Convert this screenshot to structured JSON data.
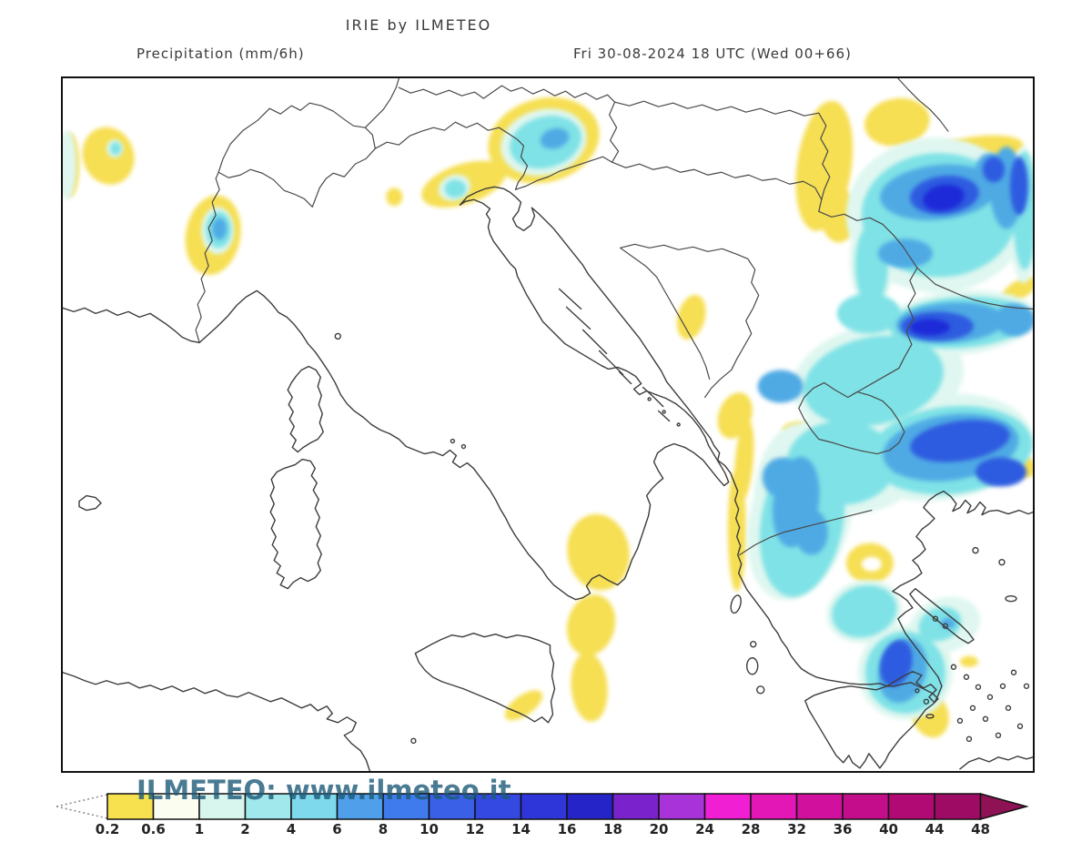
{
  "header": {
    "title": "IRIE by ILMETEO",
    "variable_label": "Precipitation (mm/6h)",
    "valid_time_label": "Fri 30-08-2024 18 UTC (Wed 00+66)"
  },
  "map": {
    "watermark": "ILMETEO: www.ilmeteo.it",
    "sea_color": "#ffffff",
    "coastline_color": "#3d3d3d",
    "border_line_color": "#4a4a4a",
    "frame_color": "#111111",
    "region": "Italy, Adriatic, Balkans and Greece"
  },
  "colorbar": {
    "unit": "mm/6h",
    "labels": [
      "0.2",
      "0.6",
      "1",
      "2",
      "4",
      "6",
      "8",
      "10",
      "12",
      "14",
      "16",
      "18",
      "20",
      "24",
      "28",
      "32",
      "36",
      "40",
      "44",
      "48"
    ],
    "segment_colors": [
      "#F8E14E",
      "#FBFDF0",
      "#D8F5EE",
      "#A0E8EC",
      "#7FD9EC",
      "#4F9FEA",
      "#3F7BEC",
      "#3A60E8",
      "#3449E2",
      "#2E36DA",
      "#2424C8",
      "#7A22CC",
      "#A833D8",
      "#F01FD4",
      "#E317B6",
      "#D2109E",
      "#C30D8B",
      "#B20A75",
      "#9E0B64"
    ],
    "arrow_color": "#8E1254",
    "outline_color": "#111111",
    "label_color": "#222222",
    "precip_palette_on_map": {
      "light": "#F6DF52",
      "pale_cyan": "#DFF7F0",
      "cyan": "#7FE2E6",
      "light_blue": "#4FAAE4",
      "blue": "#2F5CE0",
      "deep_blue": "#1C2BD8"
    }
  }
}
